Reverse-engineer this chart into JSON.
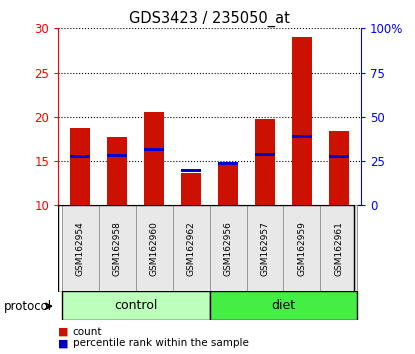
{
  "title": "GDS3423 / 235050_at",
  "samples": [
    "GSM162954",
    "GSM162958",
    "GSM162960",
    "GSM162962",
    "GSM162956",
    "GSM162957",
    "GSM162959",
    "GSM162961"
  ],
  "count_values": [
    18.7,
    17.7,
    20.5,
    13.7,
    14.8,
    19.8,
    29.0,
    18.4
  ],
  "percentile_values": [
    15.5,
    15.6,
    16.3,
    13.9,
    14.7,
    15.7,
    17.8,
    15.5
  ],
  "bar_bottom": 10,
  "left_ylim": [
    10,
    30
  ],
  "left_yticks": [
    10,
    15,
    20,
    25,
    30
  ],
  "right_ylim": [
    0,
    100
  ],
  "right_yticks": [
    0,
    25,
    50,
    75,
    100
  ],
  "right_yticklabels": [
    "0",
    "25",
    "50",
    "75",
    "100%"
  ],
  "groups": [
    {
      "label": "control",
      "indices": [
        0,
        1,
        2,
        3
      ],
      "color": "#bbffbb"
    },
    {
      "label": "diet",
      "indices": [
        4,
        5,
        6,
        7
      ],
      "color": "#44ee44"
    }
  ],
  "protocol_label": "protocol",
  "count_color": "#cc1100",
  "percentile_color": "#0000cc",
  "bar_width": 0.55,
  "bg_color": "#e8e8e8",
  "figsize": [
    4.15,
    3.54
  ],
  "dpi": 100
}
